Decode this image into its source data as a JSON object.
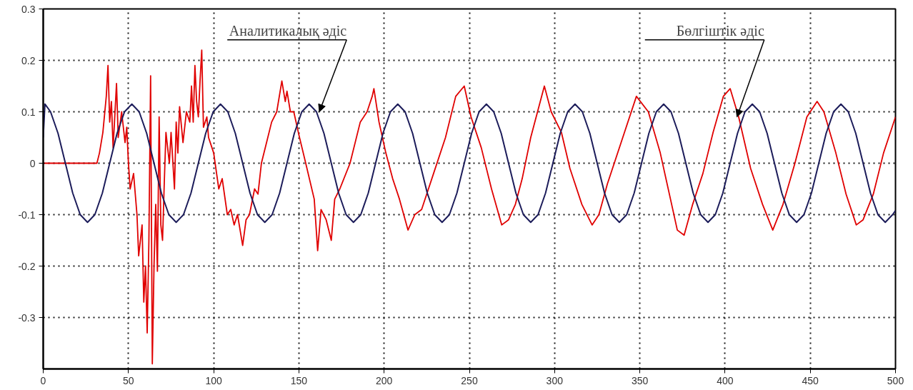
{
  "chart_data": {
    "type": "line",
    "xlim": [
      0,
      500
    ],
    "ylim": [
      -0.4,
      0.3
    ],
    "xticks": [
      0,
      50,
      100,
      150,
      200,
      250,
      300,
      350,
      400,
      450,
      500
    ],
    "yticks": [
      -0.3,
      -0.2,
      -0.1,
      0,
      0.1,
      0.2,
      0.3
    ],
    "grid": true,
    "marker": "none",
    "line_style": "solid",
    "annotations": [
      {
        "text": "Аналитикалық әдіс",
        "x": 162,
        "y": 0.1
      },
      {
        "text": "Бөлгіштік әдіс",
        "x": 407,
        "y": 0.09
      }
    ],
    "series": [
      {
        "color": "#e00000",
        "x": [
          0,
          31.5,
          33,
          35,
          37,
          38,
          39,
          40,
          41,
          43,
          44,
          46,
          48,
          49,
          50,
          51,
          53,
          55,
          56,
          58,
          59,
          60,
          61,
          62,
          63,
          64,
          65,
          66,
          67,
          68,
          69,
          70,
          71,
          72,
          74,
          75,
          77,
          78,
          79,
          80,
          82,
          84,
          86,
          87,
          88,
          89,
          90,
          91,
          92,
          93,
          94,
          96,
          97,
          99,
          100,
          103,
          105,
          108,
          110,
          112,
          114,
          117,
          119,
          121,
          124,
          126,
          128,
          131,
          134,
          137,
          140,
          142,
          143,
          145,
          147,
          150,
          154,
          159,
          161,
          163,
          166,
          169,
          171,
          174,
          180,
          186,
          190,
          193,
          194,
          197,
          201,
          205,
          209,
          214,
          218,
          222,
          229,
          236,
          242,
          247,
          251,
          257,
          263,
          269,
          273,
          277,
          281,
          286,
          290,
          294,
          298,
          304,
          309,
          316,
          322,
          326,
          331,
          340,
          348,
          355,
          362,
          368,
          372,
          376,
          381,
          387,
          393,
          399,
          403,
          408,
          415,
          422,
          428,
          434,
          441,
          448,
          454,
          458,
          465,
          471,
          477,
          481,
          487,
          493,
          500
        ],
        "values": [
          0,
          0,
          0.02,
          0.06,
          0.13,
          0.19,
          0.08,
          0.12,
          0.03,
          0.155,
          0.05,
          0.1,
          0.04,
          0.07,
          0.0,
          -0.05,
          -0.02,
          -0.1,
          -0.18,
          -0.12,
          -0.27,
          -0.2,
          -0.33,
          -0.15,
          0.17,
          -0.39,
          -0.2,
          -0.08,
          -0.21,
          0.09,
          -0.12,
          -0.15,
          -0.04,
          0.06,
          0.0,
          0.06,
          -0.05,
          0.08,
          0.02,
          0.11,
          0.04,
          0.1,
          0.08,
          0.15,
          0.08,
          0.19,
          0.12,
          0.09,
          0.16,
          0.22,
          0.07,
          0.09,
          0.05,
          0.03,
          0.02,
          -0.05,
          -0.03,
          -0.1,
          -0.09,
          -0.12,
          -0.1,
          -0.16,
          -0.11,
          -0.1,
          -0.05,
          -0.06,
          0.0,
          0.04,
          0.08,
          0.1,
          0.16,
          0.12,
          0.14,
          0.1,
          0.1,
          0.055,
          0.0,
          -0.07,
          -0.17,
          -0.09,
          -0.11,
          -0.15,
          -0.07,
          -0.05,
          0.0,
          0.08,
          0.1,
          0.13,
          0.145,
          0.08,
          0.02,
          -0.03,
          -0.07,
          -0.13,
          -0.1,
          -0.09,
          -0.02,
          0.05,
          0.13,
          0.15,
          0.09,
          0.03,
          -0.05,
          -0.12,
          -0.11,
          -0.08,
          -0.03,
          0.05,
          0.1,
          0.15,
          0.1,
          0.06,
          -0.01,
          -0.08,
          -0.12,
          -0.1,
          -0.04,
          0.05,
          0.13,
          0.1,
          0.02,
          -0.07,
          -0.13,
          -0.14,
          -0.08,
          -0.02,
          0.06,
          0.13,
          0.145,
          0.09,
          -0.01,
          -0.08,
          -0.13,
          -0.08,
          0.0,
          0.09,
          0.12,
          0.1,
          0.02,
          -0.06,
          -0.12,
          -0.11,
          -0.06,
          0.02,
          0.09
        ]
      },
      {
        "color": "#1c1c5a",
        "x": [
          0,
          1,
          4.3,
          8.7,
          13,
          17.3,
          21.7,
          26,
          30.3,
          34.7,
          39,
          43.3,
          47.7,
          52,
          56.3,
          60.7,
          65,
          69.3,
          73.7,
          78,
          82.3,
          86.7,
          91,
          95.3,
          99.7,
          104,
          108.3,
          112.7,
          117,
          121.3,
          125.7,
          130,
          134.3,
          138.7,
          143,
          147.3,
          151.7,
          156,
          160.3,
          164.7,
          169,
          173.3,
          177.7,
          182,
          186.3,
          190.7,
          195,
          199.3,
          203.7,
          208,
          212.3,
          216.7,
          221,
          225.3,
          229.7,
          234,
          238.3,
          242.7,
          247,
          251.3,
          255.7,
          260,
          264.3,
          268.7,
          273,
          277.3,
          281.7,
          286,
          290.3,
          294.7,
          299,
          303.3,
          307.7,
          312,
          316.3,
          320.7,
          325,
          329.3,
          333.7,
          338,
          342.3,
          346.7,
          351,
          355.3,
          359.7,
          364,
          368.3,
          372.7,
          377,
          381.3,
          385.7,
          390,
          394.3,
          398.7,
          403,
          407.3,
          411.7,
          416,
          420.3,
          424.7,
          429,
          433.3,
          437.7,
          442,
          446.3,
          450.7,
          455,
          459.3,
          463.7,
          468,
          472.3,
          476.7,
          481,
          485.3,
          489.7,
          494,
          498.3,
          500
        ],
        "values": [
          0.05,
          0.115,
          0.1,
          0.058,
          0,
          -0.058,
          -0.1,
          -0.115,
          -0.1,
          -0.058,
          0,
          0.058,
          0.1,
          0.115,
          0.1,
          0.058,
          0,
          -0.058,
          -0.1,
          -0.115,
          -0.1,
          -0.058,
          0,
          0.058,
          0.1,
          0.115,
          0.1,
          0.058,
          0,
          -0.058,
          -0.1,
          -0.115,
          -0.1,
          -0.058,
          0,
          0.058,
          0.1,
          0.115,
          0.1,
          0.058,
          0,
          -0.058,
          -0.1,
          -0.115,
          -0.1,
          -0.058,
          0,
          0.058,
          0.1,
          0.115,
          0.1,
          0.058,
          0,
          -0.058,
          -0.1,
          -0.115,
          -0.1,
          -0.058,
          0,
          0.058,
          0.1,
          0.115,
          0.1,
          0.058,
          0,
          -0.058,
          -0.1,
          -0.115,
          -0.1,
          -0.058,
          0,
          0.058,
          0.1,
          0.115,
          0.1,
          0.058,
          0,
          -0.058,
          -0.1,
          -0.115,
          -0.1,
          -0.058,
          0,
          0.058,
          0.1,
          0.115,
          0.1,
          0.058,
          0,
          -0.058,
          -0.1,
          -0.115,
          -0.1,
          -0.058,
          0,
          0.058,
          0.1,
          0.115,
          0.1,
          0.058,
          0,
          -0.058,
          -0.1,
          -0.115,
          -0.1,
          -0.058,
          0,
          0.058,
          0.1,
          0.115,
          0.1,
          0.058,
          0,
          -0.058,
          -0.1,
          -0.115,
          -0.1,
          -0.092
        ]
      }
    ]
  }
}
